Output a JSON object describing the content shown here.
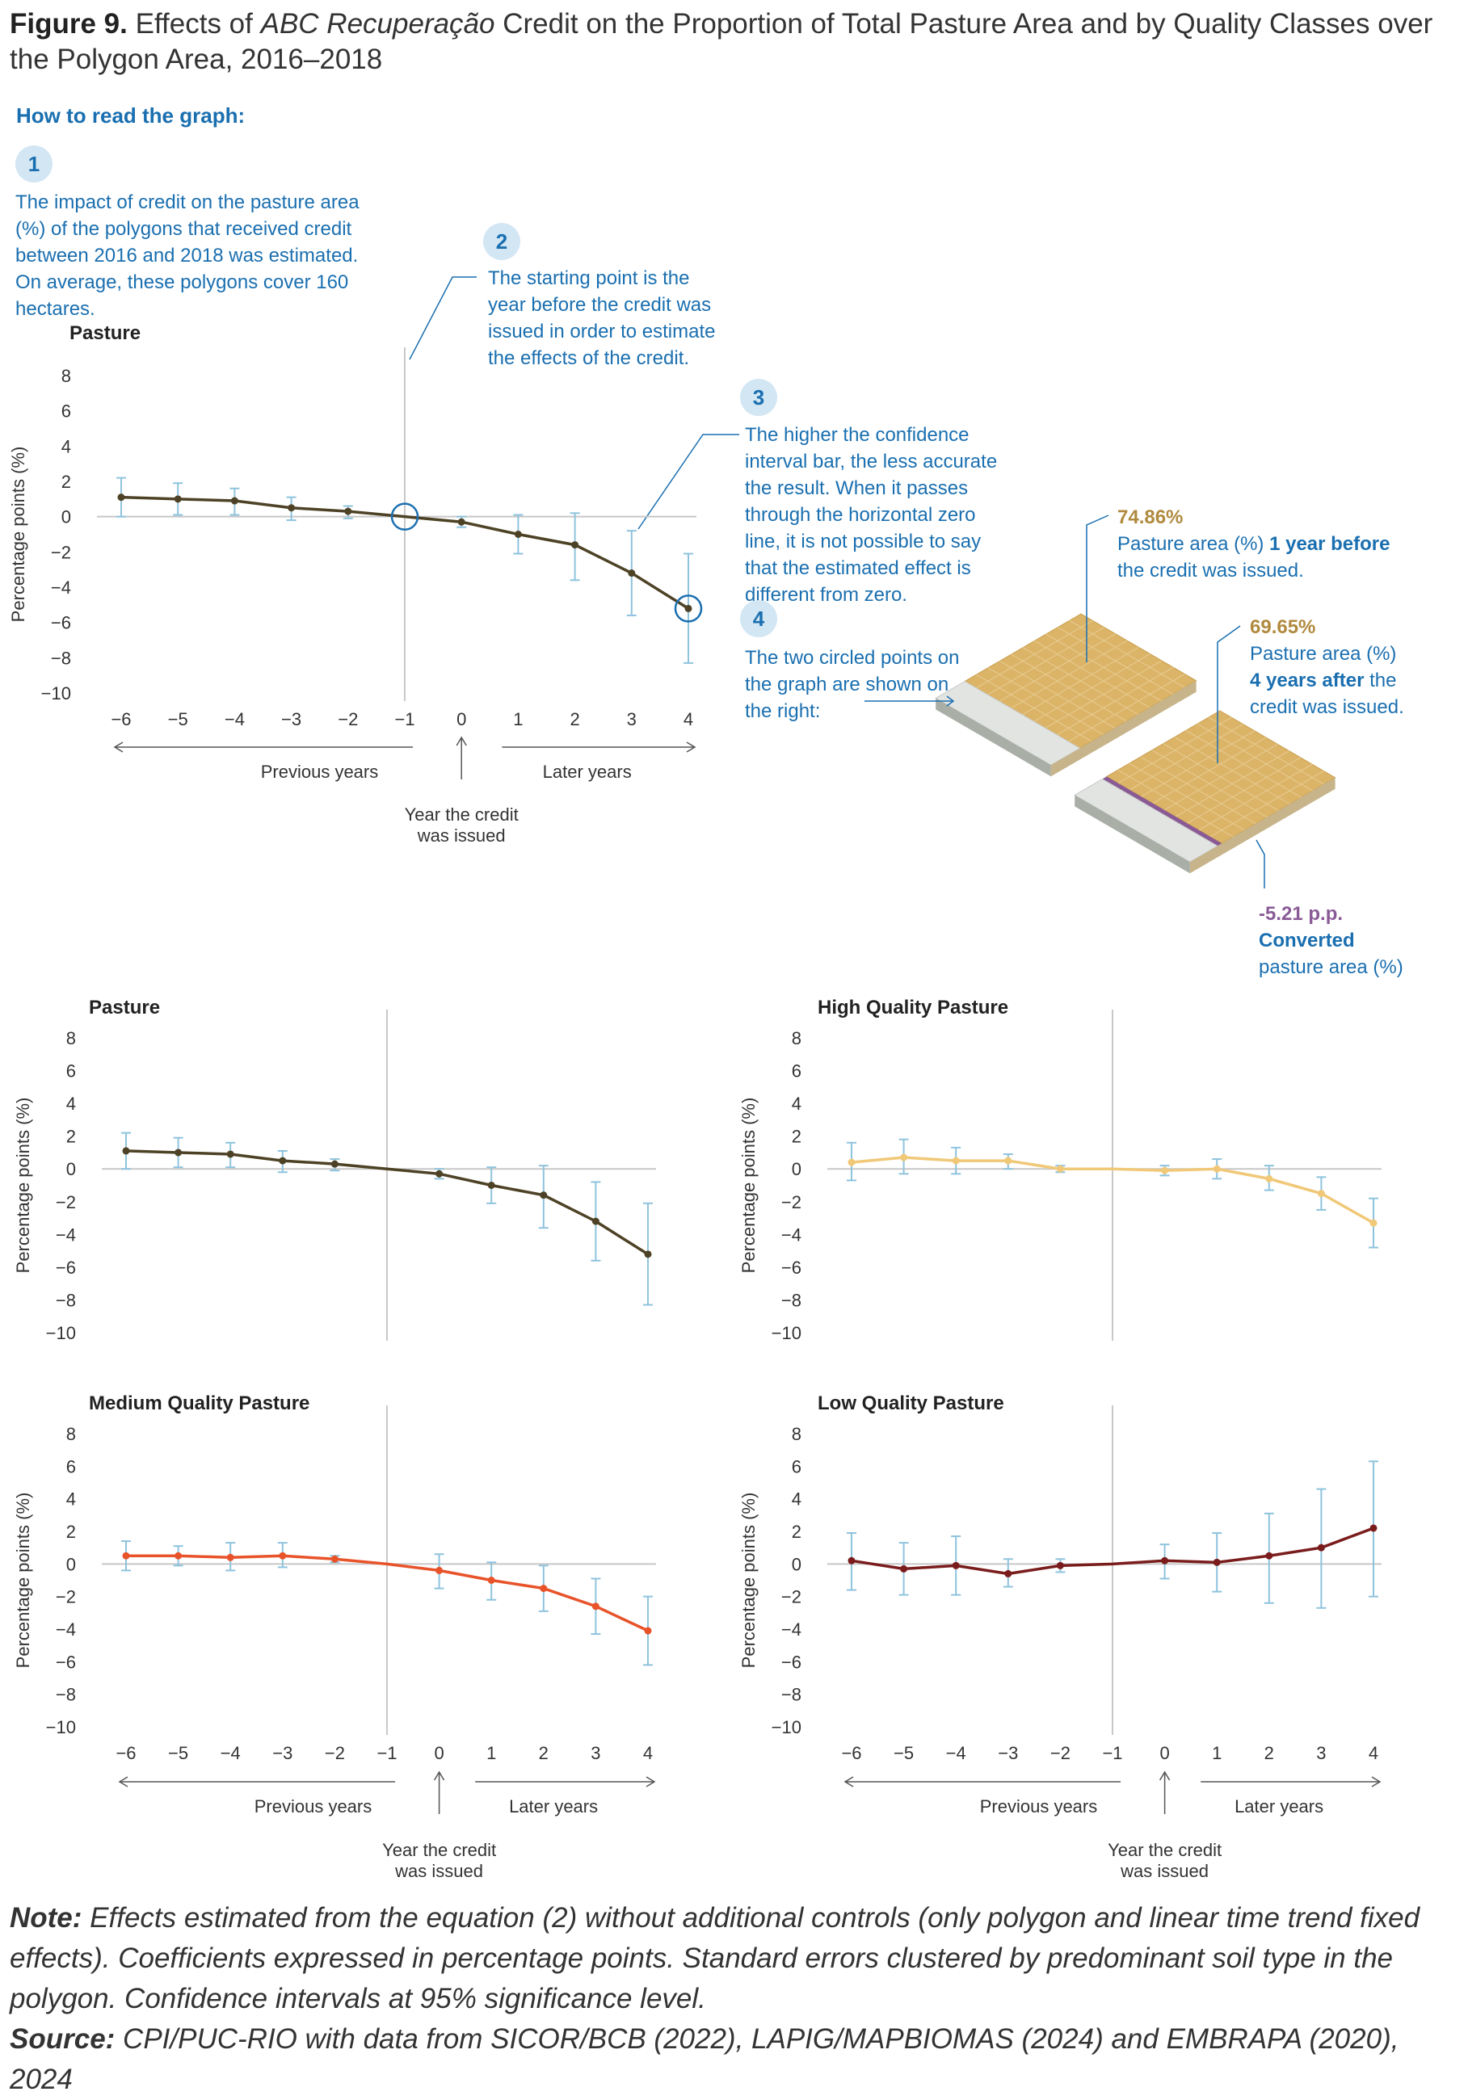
{
  "figure": {
    "label": "Figure 9.",
    "title_pre": "Effects of",
    "title_italic": "ABC Recuperação",
    "title_post": "Credit on the Proportion of Total Pasture Area and by Quality Classes over the Polygon Area, 2016–2018"
  },
  "guide": {
    "heading": "How to read the graph:",
    "steps": [
      {
        "num": "1",
        "text": "The impact of credit on the pasture area (%) of the polygons that received credit between 2016 and 2018 was estimated. On average, these polygons cover 160 hectares."
      },
      {
        "num": "2",
        "text": "The starting point is the year before the credit was issued in order to estimate the effects of the credit."
      },
      {
        "num": "3",
        "text": "The higher the confidence interval bar, the less accurate the result. When it passes through the horizontal zero line, it is not possible to say that the estimated effect is different from zero."
      },
      {
        "num": "4",
        "text": "The two circled points on the graph are shown on the right:"
      }
    ],
    "before": {
      "value": "74.86%",
      "line1": "Pasture area (%)",
      "bold": "1 year before",
      "line2": "the credit was issued."
    },
    "after": {
      "value": "69.65%",
      "line1": "Pasture area (%)",
      "bold": "4 years after",
      "line2_pre": "the",
      "line2": "credit was issued."
    },
    "converted": {
      "value": "-5.21 p.p.",
      "bold": "Converted",
      "line": "pasture area (%)"
    }
  },
  "axis_text": {
    "ylabel": "Percentage points (%)",
    "previous": "Previous years",
    "later": "Later years",
    "credit_line1": "Year the credit",
    "credit_line2": "was issued"
  },
  "colors": {
    "pasture": "#4e4226",
    "high": "#f0c878",
    "medium": "#e8532a",
    "low": "#7a1c1c",
    "ci": "#8ec3dd",
    "accent": "#1a6fb0",
    "grid": "#c8c8c8",
    "field": "#dcb468",
    "converted": "#8a5a96"
  },
  "chart_data": [
    {
      "type": "line",
      "title": "Pasture",
      "xlabel": "",
      "ylabel": "Percentage points (%)",
      "x": [
        -6,
        -5,
        -4,
        -3,
        -2,
        -1,
        0,
        1,
        2,
        3,
        4
      ],
      "y": [
        1.1,
        1.0,
        0.9,
        0.5,
        0.3,
        0.0,
        -0.3,
        -1.0,
        -1.6,
        -3.2,
        -5.21
      ],
      "ci_low": [
        0.0,
        0.1,
        0.1,
        -0.2,
        -0.1,
        0.0,
        -0.6,
        -2.1,
        -3.6,
        -5.6,
        -8.3
      ],
      "ci_high": [
        2.2,
        1.9,
        1.6,
        1.1,
        0.6,
        0.0,
        0.0,
        0.1,
        0.2,
        -0.8,
        -2.1
      ],
      "ylim": [
        -10,
        8
      ],
      "yticks": [
        8,
        6,
        4,
        2,
        0,
        -2,
        -4,
        -6,
        -8,
        -10
      ]
    },
    {
      "type": "line",
      "title": "High Quality Pasture",
      "xlabel": "",
      "ylabel": "Percentage points (%)",
      "x": [
        -6,
        -5,
        -4,
        -3,
        -2,
        -1,
        0,
        1,
        2,
        3,
        4
      ],
      "y": [
        0.4,
        0.7,
        0.5,
        0.5,
        0.0,
        0.0,
        -0.1,
        0.0,
        -0.6,
        -1.5,
        -3.3
      ],
      "ci_low": [
        -0.7,
        -0.3,
        -0.3,
        0.0,
        -0.2,
        0.0,
        -0.4,
        -0.6,
        -1.3,
        -2.5,
        -4.8
      ],
      "ci_high": [
        1.6,
        1.8,
        1.3,
        0.9,
        0.2,
        0.0,
        0.2,
        0.6,
        0.2,
        -0.5,
        -1.8
      ],
      "ylim": [
        -10,
        8
      ],
      "yticks": [
        8,
        6,
        4,
        2,
        0,
        -2,
        -4,
        -6,
        -8,
        -10
      ]
    },
    {
      "type": "line",
      "title": "Medium Quality Pasture",
      "xlabel": "",
      "ylabel": "Percentage points (%)",
      "x": [
        -6,
        -5,
        -4,
        -3,
        -2,
        -1,
        0,
        1,
        2,
        3,
        4
      ],
      "y": [
        0.5,
        0.5,
        0.4,
        0.5,
        0.3,
        0.0,
        -0.4,
        -1.0,
        -1.5,
        -2.6,
        -4.1
      ],
      "ci_low": [
        -0.4,
        -0.1,
        -0.4,
        -0.2,
        0.1,
        0.0,
        -1.5,
        -2.2,
        -2.9,
        -4.3,
        -6.2
      ],
      "ci_high": [
        1.4,
        1.1,
        1.3,
        1.3,
        0.5,
        0.0,
        0.6,
        0.1,
        -0.1,
        -0.9,
        -2.0
      ],
      "ylim": [
        -10,
        8
      ],
      "yticks": [
        8,
        6,
        4,
        2,
        0,
        -2,
        -4,
        -6,
        -8,
        -10
      ]
    },
    {
      "type": "line",
      "title": "Low Quality Pasture",
      "xlabel": "",
      "ylabel": "Percentage points (%)",
      "x": [
        -6,
        -5,
        -4,
        -3,
        -2,
        -1,
        0,
        1,
        2,
        3,
        4
      ],
      "y": [
        0.2,
        -0.3,
        -0.1,
        -0.6,
        -0.1,
        0.0,
        0.2,
        0.1,
        0.5,
        1.0,
        2.2
      ],
      "ci_low": [
        -1.6,
        -1.9,
        -1.9,
        -1.4,
        -0.5,
        0.0,
        -0.9,
        -1.7,
        -2.4,
        -2.7,
        -2.0
      ],
      "ci_high": [
        1.9,
        1.3,
        1.7,
        0.3,
        0.3,
        0.0,
        1.2,
        1.9,
        3.1,
        4.6,
        6.3
      ],
      "ylim": [
        -10,
        8
      ],
      "yticks": [
        8,
        6,
        4,
        2,
        0,
        -2,
        -4,
        -6,
        -8,
        -10
      ]
    }
  ],
  "footer": {
    "note_label": "Note:",
    "note_text": "Effects estimated from the equation (2) without additional controls (only polygon and linear time trend fixed effects). Coefficients expressed in percentage points. Standard errors clustered by predominant soil type in the polygon. Confidence intervals at 95% significance level.",
    "source_label": "Source:",
    "source_text": "CPI/PUC-RIO with data from SICOR/BCB (2022), LAPIG/MAPBIOMAS (2024) and EMBRAPA (2020), 2024"
  }
}
